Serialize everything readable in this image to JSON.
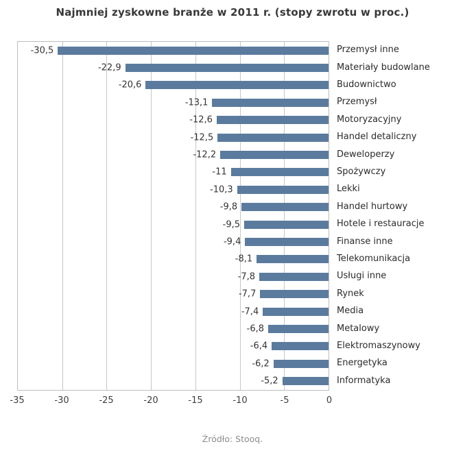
{
  "chart_data": {
    "type": "bar",
    "orientation": "horizontal",
    "title": "Najmniej zyskowne branże w 2011 r. (stopy zwrotu w proc.)",
    "source": "Źródło: Stooq.",
    "categories": [
      "Przemysł inne",
      "Materiały budowlane",
      "Budownictwo",
      "Przemysł",
      "Motoryzacyjny",
      "Handel detaliczny",
      "Deweloperzy",
      "Spożywczy",
      "Lekki",
      "Handel hurtowy",
      "Hotele i restauracje",
      "Finanse inne",
      "Telekomunikacja",
      "Usługi inne",
      "Rynek",
      "Media",
      "Metalowy",
      "Elektromaszynowy",
      "Energetyka",
      "Informatyka"
    ],
    "values": [
      -30.5,
      -22.9,
      -20.6,
      -13.1,
      -12.6,
      -12.5,
      -12.2,
      -11,
      -10.3,
      -9.8,
      -9.5,
      -9.4,
      -8.1,
      -7.8,
      -7.7,
      -7.4,
      -6.8,
      -6.4,
      -6.2,
      -5.2
    ],
    "value_labels": [
      "-30,5",
      "-22,9",
      "-20,6",
      "-13,1",
      "-12,6",
      "-12,5",
      "-12,2",
      "-11",
      "-10,3",
      "-9,8",
      "-9,5",
      "-9,4",
      "-8,1",
      "-7,8",
      "-7,7",
      "-7,4",
      "-6,8",
      "-6,4",
      "-6,2",
      "-5,2"
    ],
    "xlim": [
      -35,
      0
    ],
    "x_ticks": [
      -35,
      -30,
      -25,
      -20,
      -15,
      -10,
      -5,
      0
    ],
    "x_tick_labels": [
      "-35",
      "-30",
      "-25",
      "-20",
      "-15",
      "-10",
      "-5",
      "0"
    ],
    "bar_color": "#5b7b9e",
    "grid": true,
    "legend": false
  }
}
